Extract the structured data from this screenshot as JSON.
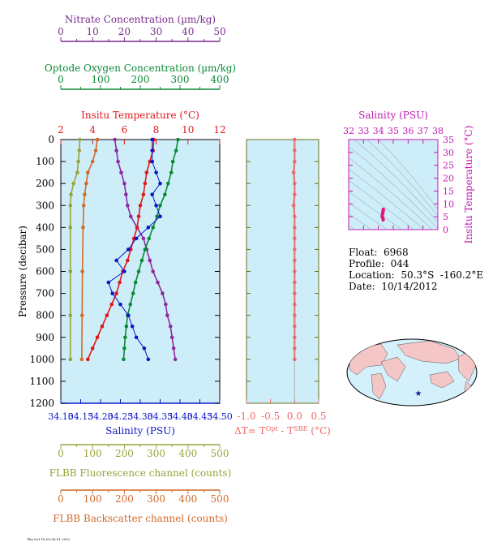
{
  "chart_data": [
    {
      "type": "line",
      "title": "",
      "axes": {
        "nitrate": {
          "label": "Nitrate Concentration (µm/kg)",
          "ticks": [
            "0",
            "10",
            "20",
            "30",
            "40",
            "50"
          ],
          "range": [
            0,
            50
          ],
          "color": "#7b2d8e"
        },
        "oxygen": {
          "label": "Optode Oxygen Concentration (µm/kg)",
          "ticks": [
            "0",
            "100",
            "200",
            "300",
            "400"
          ],
          "range": [
            0,
            400
          ],
          "color": "#0a8a35"
        },
        "temperature": {
          "label": "Insitu Temperature (°C)",
          "ticks": [
            "2",
            "4",
            "6",
            "8",
            "10",
            "12"
          ],
          "range": [
            2,
            12
          ],
          "color": "#e0181b"
        },
        "pressure": {
          "label": "Pressure (decibar)",
          "ticks": [
            "0",
            "100",
            "200",
            "300",
            "400",
            "500",
            "600",
            "700",
            "800",
            "900",
            "1000",
            "1100",
            "1200"
          ],
          "range": [
            0,
            1200
          ],
          "color": "#000000"
        },
        "salinity": {
          "label": "Salinity (PSU)",
          "ticks": [
            "34.10",
            "34.15",
            "34.20",
            "34.25",
            "34.30",
            "34.35",
            "34.40",
            "34.45",
            "34.50"
          ],
          "range": [
            34.1,
            34.5
          ],
          "color": "#0b18c8"
        },
        "fluorescence": {
          "label": "FLBB Fluorescence channel (counts)",
          "ticks": [
            "0",
            "100",
            "200",
            "300",
            "400",
            "500"
          ],
          "range": [
            0,
            500
          ],
          "color": "#9aa23a"
        },
        "backscatter": {
          "label": "FLBB Backscatter channel (counts)",
          "ticks": [
            "0",
            "100",
            "200",
            "300",
            "400",
            "500"
          ],
          "range": [
            0,
            500
          ],
          "color": "#d2692a"
        }
      },
      "series": [
        {
          "name": "Nitrate",
          "axis": "nitrate",
          "color": "#8e2a9e",
          "points": [
            [
              17,
              0
            ],
            [
              17.5,
              50
            ],
            [
              18,
              100
            ],
            [
              19,
              150
            ],
            [
              20,
              200
            ],
            [
              20.5,
              250
            ],
            [
              21,
              300
            ],
            [
              22,
              350
            ],
            [
              24,
              400
            ],
            [
              26,
              450
            ],
            [
              27,
              500
            ],
            [
              28,
              550
            ],
            [
              29,
              600
            ],
            [
              30.5,
              650
            ],
            [
              32,
              700
            ],
            [
              33,
              750
            ],
            [
              33.5,
              800
            ],
            [
              34.5,
              850
            ],
            [
              35,
              900
            ],
            [
              35.5,
              950
            ],
            [
              36,
              1000
            ]
          ]
        },
        {
          "name": "Oxygen",
          "axis": "oxygen",
          "color": "#0a8a35",
          "points": [
            [
              295,
              0
            ],
            [
              290,
              50
            ],
            [
              282,
              100
            ],
            [
              278,
              150
            ],
            [
              270,
              200
            ],
            [
              262,
              250
            ],
            [
              250,
              300
            ],
            [
              242,
              350
            ],
            [
              232,
              400
            ],
            [
              222,
              450
            ],
            [
              212,
              500
            ],
            [
              204,
              550
            ],
            [
              196,
              600
            ],
            [
              188,
              650
            ],
            [
              182,
              700
            ],
            [
              175,
              750
            ],
            [
              168,
              800
            ],
            [
              165,
              850
            ],
            [
              162,
              900
            ],
            [
              160,
              950
            ],
            [
              158,
              1000
            ]
          ]
        },
        {
          "name": "Temperature",
          "axis": "temperature",
          "color": "#e0181b",
          "points": [
            [
              7.85,
              0
            ],
            [
              7.8,
              50
            ],
            [
              7.6,
              100
            ],
            [
              7.4,
              150
            ],
            [
              7.3,
              200
            ],
            [
              7.2,
              250
            ],
            [
              7.0,
              300
            ],
            [
              6.9,
              350
            ],
            [
              6.8,
              400
            ],
            [
              6.6,
              450
            ],
            [
              6.4,
              500
            ],
            [
              6.2,
              550
            ],
            [
              5.9,
              600
            ],
            [
              5.7,
              650
            ],
            [
              5.5,
              700
            ],
            [
              5.2,
              750
            ],
            [
              4.9,
              800
            ],
            [
              4.6,
              850
            ],
            [
              4.3,
              900
            ],
            [
              4.0,
              950
            ],
            [
              3.7,
              1000
            ]
          ]
        },
        {
          "name": "Salinity",
          "axis": "salinity",
          "color": "#0b18c8",
          "points": [
            [
              34.33,
              0
            ],
            [
              34.33,
              50
            ],
            [
              34.33,
              100
            ],
            [
              34.34,
              150
            ],
            [
              34.35,
              200
            ],
            [
              34.33,
              250
            ],
            [
              34.34,
              300
            ],
            [
              34.35,
              350
            ],
            [
              34.32,
              400
            ],
            [
              34.29,
              450
            ],
            [
              34.27,
              500
            ],
            [
              34.24,
              550
            ],
            [
              34.26,
              600
            ],
            [
              34.22,
              650
            ],
            [
              34.23,
              700
            ],
            [
              34.25,
              750
            ],
            [
              34.27,
              800
            ],
            [
              34.28,
              850
            ],
            [
              34.29,
              900
            ],
            [
              34.31,
              950
            ],
            [
              34.32,
              1000
            ]
          ]
        },
        {
          "name": "Fluorescence",
          "axis": "fluorescence",
          "color": "#9aa23a",
          "points": [
            [
              60,
              0
            ],
            [
              58,
              50
            ],
            [
              55,
              100
            ],
            [
              52,
              150
            ],
            [
              40,
              200
            ],
            [
              32,
              250
            ],
            [
              30,
              300
            ],
            [
              30,
              400
            ],
            [
              30,
              600
            ],
            [
              30,
              800
            ],
            [
              30,
              1000
            ]
          ]
        },
        {
          "name": "Backscatter",
          "axis": "backscatter",
          "color": "#d2692a",
          "points": [
            [
              115,
              0
            ],
            [
              110,
              50
            ],
            [
              100,
              100
            ],
            [
              85,
              150
            ],
            [
              80,
              200
            ],
            [
              75,
              250
            ],
            [
              72,
              300
            ],
            [
              70,
              400
            ],
            [
              68,
              600
            ],
            [
              67,
              800
            ],
            [
              66,
              1000
            ]
          ]
        }
      ]
    },
    {
      "type": "scatter",
      "title": "",
      "xlabel": "ΔT= T^Opt - T^SBE (°C)",
      "xticks": [
        "-1.0",
        "-0.5",
        "0.0",
        "0.5"
      ],
      "xlim": [
        -1.0,
        0.5
      ],
      "ylim": [
        0,
        1200
      ],
      "color": "#f06a6a",
      "points": [
        [
          0.0,
          0
        ],
        [
          0.0,
          50
        ],
        [
          0.0,
          100
        ],
        [
          -0.02,
          150
        ],
        [
          0.0,
          200
        ],
        [
          0.0,
          250
        ],
        [
          -0.02,
          300
        ],
        [
          0.0,
          350
        ],
        [
          0.0,
          400
        ],
        [
          0.0,
          450
        ],
        [
          0.0,
          500
        ],
        [
          0.0,
          550
        ],
        [
          0.0,
          600
        ],
        [
          0.0,
          650
        ],
        [
          0.0,
          700
        ],
        [
          0.0,
          750
        ],
        [
          0.0,
          800
        ],
        [
          0.0,
          850
        ],
        [
          0.0,
          900
        ],
        [
          0.0,
          950
        ],
        [
          0.0,
          1000
        ]
      ]
    },
    {
      "type": "scatter",
      "title": "",
      "xlabel": "Salinity (PSU)",
      "ylabel": "Insitu Temperature (°C)",
      "xticks": [
        "32",
        "33",
        "34",
        "35",
        "36",
        "37",
        "38"
      ],
      "yticks": [
        "0",
        "5",
        "10",
        "15",
        "20",
        "25",
        "30",
        "35"
      ],
      "xlim": [
        32,
        38
      ],
      "ylim": [
        0,
        35
      ],
      "color": "#e0177f",
      "points": [
        [
          34.33,
          7.9
        ],
        [
          34.33,
          7.5
        ],
        [
          34.3,
          6.8
        ],
        [
          34.28,
          6.0
        ],
        [
          34.25,
          5.2
        ],
        [
          34.3,
          4.5
        ],
        [
          34.32,
          3.8
        ]
      ]
    }
  ],
  "info": {
    "float": "Float:  6968",
    "profile": "Profile:  044",
    "location": "Location:  50.3°S  -160.2°E",
    "date": "Date:  10/14/2012"
  },
  "map": {
    "marker": "★",
    "marker_color": "#1a1aa0",
    "land_color": "#f5c6c6",
    "ocean_color": "#d4f0fa"
  },
  "footer": "Thu Oct 18 05:26:01 2012"
}
